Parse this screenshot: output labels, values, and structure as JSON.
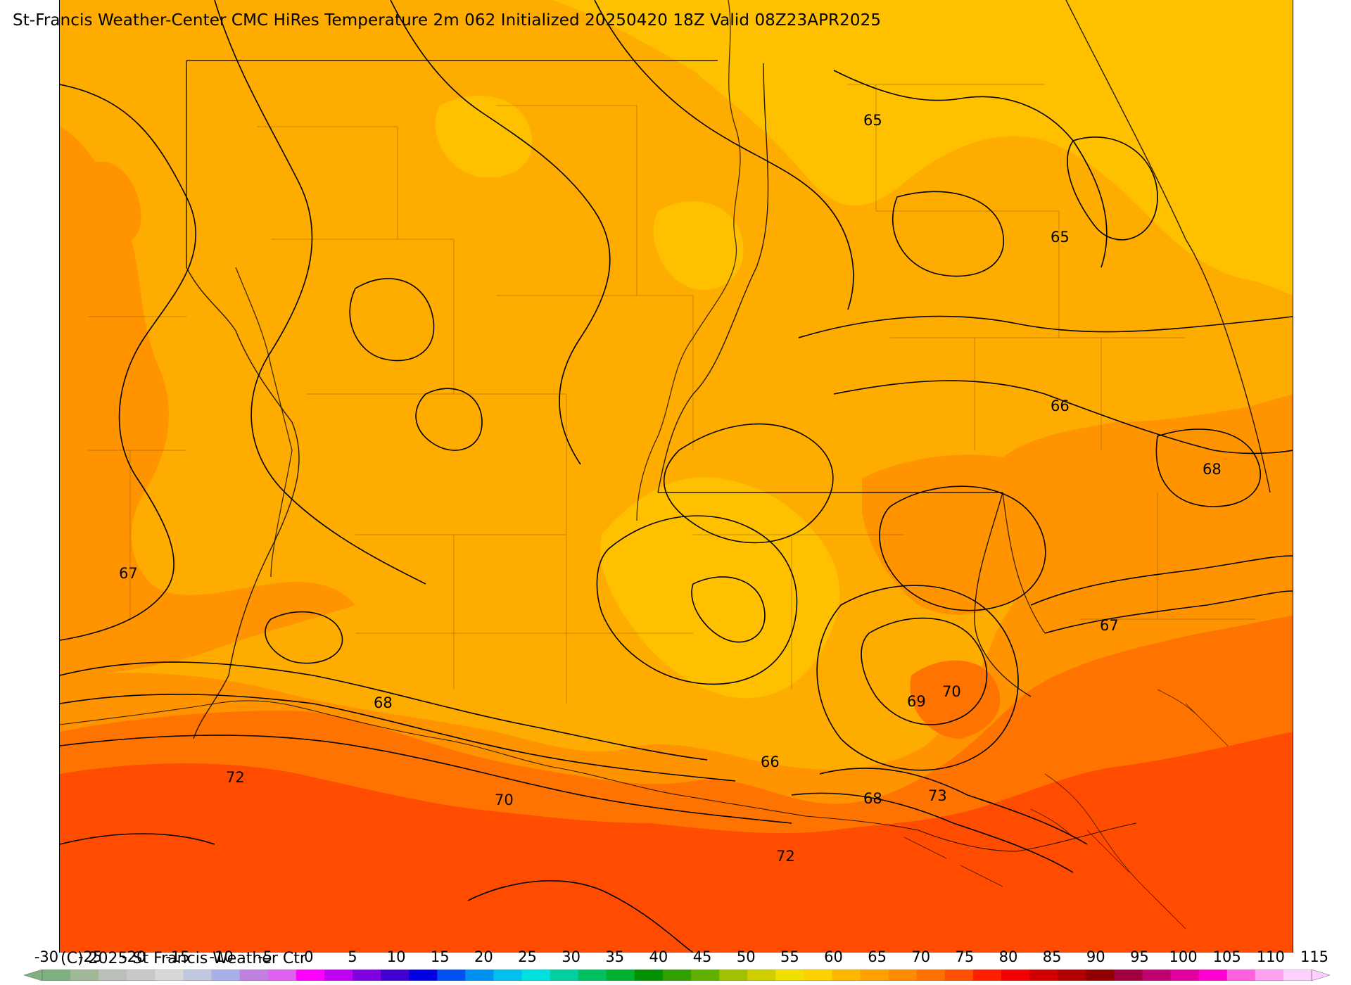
{
  "title": "St-Francis Weather-Center CMC HiRes Temperature 2m  062 Initialized 20250420 18Z Valid 08Z23APR2025",
  "copyright": "(C) 2025 St Francis Weather Ctr",
  "colorbar": {
    "tick_labels": [
      "-30",
      "-25",
      "-20",
      "-15",
      "-10",
      "-5",
      "0",
      "5",
      "10",
      "15",
      "20",
      "25",
      "30",
      "35",
      "40",
      "45",
      "50",
      "55",
      "60",
      "65",
      "70",
      "75",
      "80",
      "85",
      "90",
      "95",
      "100",
      "105",
      "110",
      "115"
    ],
    "colors": [
      "#7fb07f",
      "#a0b898",
      "#b8c0b8",
      "#c8c8c8",
      "#d8d8d8",
      "#c0c8e0",
      "#a8b0e8",
      "#c080e0",
      "#e060f0",
      "#ff00ff",
      "#c000f0",
      "#8000e0",
      "#4000d0",
      "#0000e0",
      "#0050f0",
      "#0090f0",
      "#00c0f0",
      "#00e0e0",
      "#00d0a0",
      "#00c060",
      "#00b030",
      "#009000",
      "#30a000",
      "#60b000",
      "#a0c000",
      "#d0d000",
      "#f0e000",
      "#ffd000",
      "#ffb800",
      "#ffa000",
      "#ff8c00",
      "#ff7000",
      "#ff5000",
      "#ff2000",
      "#f00000",
      "#d00000",
      "#b00000",
      "#900000",
      "#a00040",
      "#c00070",
      "#e000a0",
      "#ff00d0",
      "#ff60e0",
      "#ffa0f0",
      "#ffd0ff"
    ]
  },
  "temperature_fill": {
    "64-65": "#ffc000",
    "65-67": "#ffac00",
    "67-69": "#ff9400",
    "69-72": "#ff7400",
    "72-75": "#ff4c00"
  },
  "contour_labels": [
    {
      "value": "65",
      "label": "contour-65-north"
    },
    {
      "value": "65",
      "label": "contour-65-northeast"
    },
    {
      "value": "66",
      "label": "contour-66-east"
    },
    {
      "value": "68",
      "label": "contour-68-east"
    },
    {
      "value": "67",
      "label": "contour-67-west"
    },
    {
      "value": "67",
      "label": "contour-67-southeast"
    },
    {
      "value": "68",
      "label": "contour-68-southwest"
    },
    {
      "value": "70",
      "label": "contour-70-south"
    },
    {
      "value": "69",
      "label": "contour-69-south"
    },
    {
      "value": "72",
      "label": "contour-72-west"
    },
    {
      "value": "70",
      "label": "contour-70-coast"
    },
    {
      "value": "66",
      "label": "contour-66-central"
    },
    {
      "value": "68",
      "label": "contour-68-delta"
    },
    {
      "value": "73",
      "label": "contour-73-delta"
    },
    {
      "value": "72",
      "label": "contour-72-gulf"
    }
  ]
}
